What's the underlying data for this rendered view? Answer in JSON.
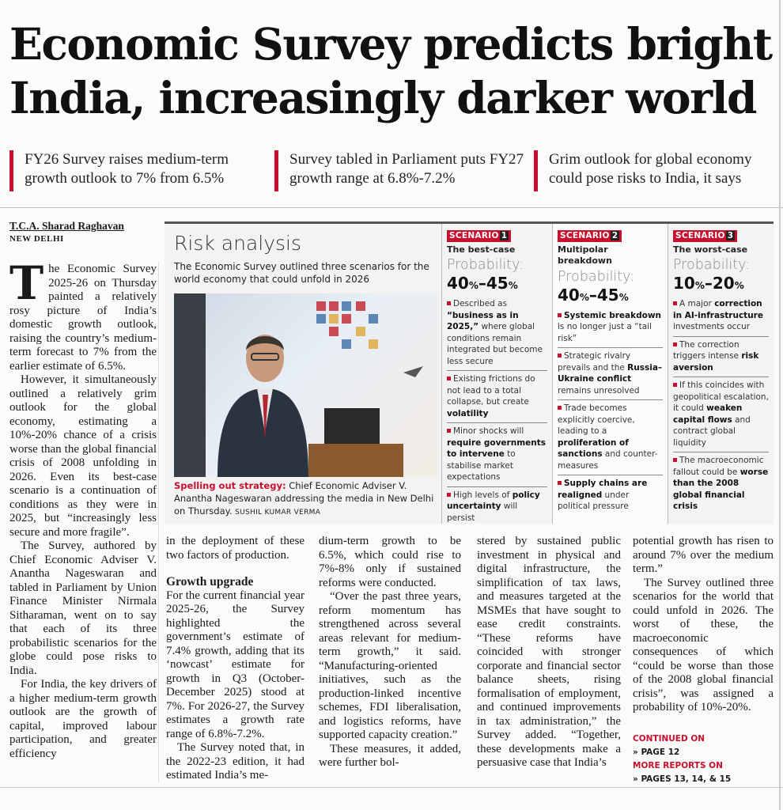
{
  "headline": "Economic Survey predicts bright India, increasingly darker world",
  "subheads": [
    "FY26 Survey raises medium-term growth outlook to 7% from 6.5%",
    "Survey tabled in Parliament puts FY27 growth range at 6.8%-7.2%",
    "Grim outlook for global economy could pose risks to India, it says"
  ],
  "byline": "T.C.A. Sharad Raghavan",
  "dateline": "NEW DELHI",
  "colors": {
    "accent": "#c8102e",
    "box_border": "#555555"
  },
  "risk_box": {
    "title": "Risk analysis",
    "intro": "The Economic Survey outlined three scenarios for the world economy that could unfold in 2026",
    "caption_lead": "Spelling out strategy:",
    "caption": "Chief Economic Adviser V. Anantha Nageswaran addressing the media in New Delhi on Thursday.",
    "photo_credit": "SUSHIL KUMAR VERMA",
    "probability_label": "Probability:",
    "scenario_tag": "SCENARIO",
    "scenarios": [
      {
        "number": "1",
        "title": "The best-case",
        "prob_low": "40",
        "prob_high": "45",
        "unit": "%",
        "bullets": [
          [
            {
              "t": "Described as "
            },
            {
              "t": "“business as in 2025,”",
              "b": true
            },
            {
              "t": " where global conditions remain integrated but become less secure"
            }
          ],
          [
            {
              "t": "Existing frictions do not lead to a total collapse, but create "
            },
            {
              "t": "volatility",
              "b": true
            }
          ],
          [
            {
              "t": "Minor shocks will "
            },
            {
              "t": "require governments to intervene",
              "b": true
            },
            {
              "t": " to stabilise market expectations"
            }
          ],
          [
            {
              "t": "High levels of "
            },
            {
              "t": "policy uncertainty",
              "b": true
            },
            {
              "t": " will persist"
            }
          ]
        ]
      },
      {
        "number": "2",
        "title": "Multipolar breakdown",
        "prob_low": "40",
        "prob_high": "45",
        "unit": "%",
        "bullets": [
          [
            {
              "t": "Systemic breakdown",
              "b": true
            },
            {
              "t": " is no longer just a “tail risk”"
            }
          ],
          [
            {
              "t": "Strategic rivalry prevails and the "
            },
            {
              "t": "Russia–Ukraine conflict",
              "b": true
            },
            {
              "t": " remains unresolved"
            }
          ],
          [
            {
              "t": "Trade becomes explicitly coercive, leading to a "
            },
            {
              "t": "proliferation of sanctions",
              "b": true
            },
            {
              "t": " and counter-measures"
            }
          ],
          [
            {
              "t": "Supply chains are realigned",
              "b": true
            },
            {
              "t": " under political pressure"
            }
          ]
        ]
      },
      {
        "number": "3",
        "title": "The worst-case",
        "prob_low": "10",
        "prob_high": "20",
        "unit": "%",
        "bullets": [
          [
            {
              "t": "A major "
            },
            {
              "t": "correction in AI-infrastructure",
              "b": true
            },
            {
              "t": " investments occur"
            }
          ],
          [
            {
              "t": "The correction triggers intense "
            },
            {
              "t": "risk aversion",
              "b": true
            }
          ],
          [
            {
              "t": "If this coincides with geopolitical escalation, it could "
            },
            {
              "t": "weaken capital flows",
              "b": true
            },
            {
              "t": " and contract global liquidity"
            }
          ],
          [
            {
              "t": "The macroeconomic fallout could be "
            },
            {
              "t": "worse than the 2008 global financial crisis",
              "b": true
            }
          ]
        ]
      }
    ]
  },
  "article": {
    "dropcap": "T",
    "col1": [
      "he Economic Survey 2025-26 on Thursday painted a relatively rosy picture of India’s domestic growth outlook, raising the country’s medium-term forecast to 7% from the earlier estimate of 6.5%.",
      "However, it simultaneously outlined a relatively grim outlook for the global economy, estimating a 10%-20% chance of a crisis worse than the global financial crisis of 2008 unfolding in 2026. Even its best-case scenario is a continuation of conditions as they were in 2025, but “increasingly less secure and more fragile”.",
      "The Survey, authored by Chief Economic Adviser V. Anantha Nageswaran and tabled in Parliament by Union Finance Minister Nirmala Sitharaman, went on to say that each of its three probabilistic scenarios for the globe could pose risks to India.",
      "For India, the key drivers of a higher medium-term growth outlook are the growth of capital, improved labour participation, and greater efficiency"
    ],
    "col2_lead": "in the deployment of these two factors of production.",
    "subhead": "Growth upgrade",
    "col2": [
      "For the current financial year 2025-26, the Survey highlighted the government’s estimate of 7.4% growth, adding that its ‘nowcast’ estimate for growth in Q3 (October-December 2025) stood at 7%. For 2026-27, the Survey estimates a growth rate range of 6.8%-7.2%.",
      "The Survey noted that, in the 2022-23 edition, it had estimated India’s me-"
    ],
    "col3": [
      "dium-term growth to be 6.5%, which could rise to 7%-8% only if sustained reforms were conducted.",
      "“Over the past three years, reform momentum has strengthened across several areas relevant for medium-term growth,” it said. “Manufacturing-oriented initiatives, such as the production-linked incentive schemes, FDI liberalisation, and logistics reforms, have supported capacity creation.”",
      "These measures, it added, were further bol-"
    ],
    "col4": [
      "stered by sustained public investment in physical and digital infrastructure, the simplification of tax laws, and measures targeted at the MSMEs that have sought to ease credit constraints. “These reforms have coincided with stronger corporate and financial sector balance sheets, rising formalisation of employment, and continued improvements in tax administration,” the Survey added. “Together, these developments make a persuasive case that India’s"
    ],
    "col5": [
      "potential growth has risen to around 7% over the medium term.”",
      "The Survey outlined three scenarios for the world that could unfold in 2026. The worst of these, the macroeconomic consequences of which “could be worse than those of the 2008 global financial crisis”, was assigned a probability of 10%-20%."
    ],
    "continued_label": "CONTINUED ON",
    "continued_page": "» PAGE 12",
    "more_label": "MORE REPORTS ON",
    "more_pages": "» PAGES 13, 14, & 15"
  }
}
